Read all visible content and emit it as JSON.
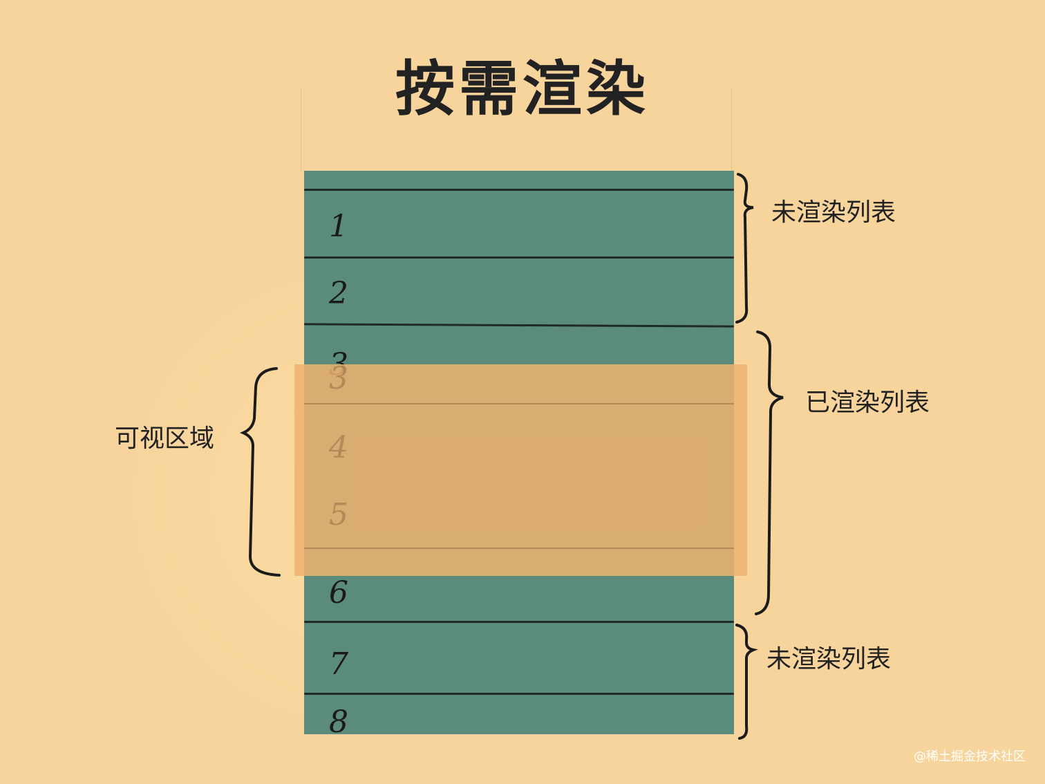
{
  "title": "按需渲染",
  "list": {
    "rows": [
      "1",
      "2",
      "3",
      "4",
      "5",
      "6",
      "7",
      "8"
    ],
    "colors": {
      "row_fill": "#5a8b7c",
      "viewport_fill": "#f0b270",
      "background": "#f7d49b"
    }
  },
  "labels": {
    "unrendered_top": "未渲染列表",
    "rendered": "已渲染列表",
    "unrendered_bottom": "未渲染列表",
    "viewport": "可视区域"
  },
  "watermark": "@稀土掘金技术社区"
}
